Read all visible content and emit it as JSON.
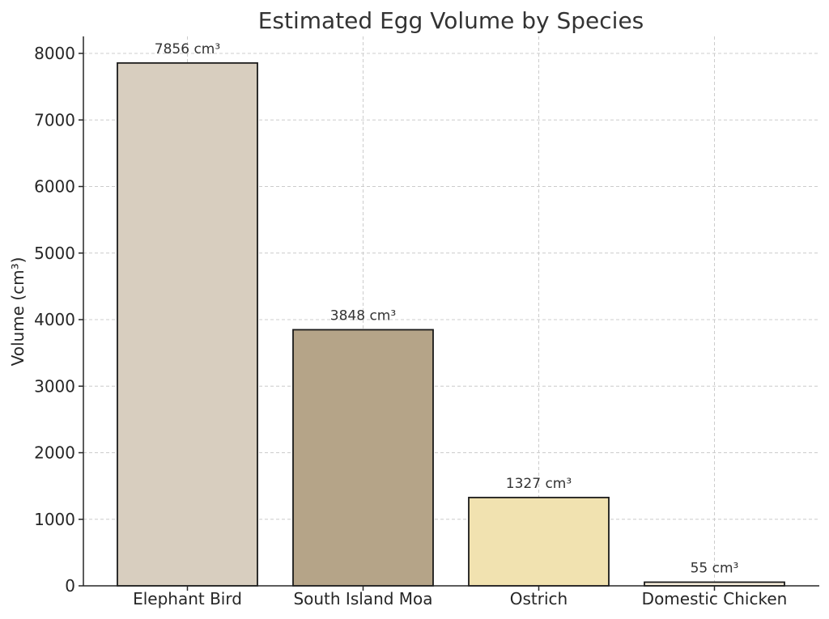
{
  "chart_data": {
    "type": "bar",
    "title": "Estimated Egg Volume by Species",
    "xlabel": "",
    "ylabel": "Volume (cm³)",
    "categories": [
      "Elephant Bird",
      "South Island Moa",
      "Ostrich",
      "Domestic Chicken"
    ],
    "values": [
      7856,
      3848,
      1327,
      55
    ],
    "data_labels": [
      "7856 cm³",
      "3848 cm³",
      "1327 cm³",
      "55 cm³"
    ],
    "colors": [
      "#d8cebf",
      "#b5a488",
      "#f1e2b0",
      "#f8eedc"
    ],
    "ylim": [
      0,
      8250
    ],
    "yticks": [
      0,
      1000,
      2000,
      3000,
      4000,
      5000,
      6000,
      7000,
      8000
    ],
    "grid": true,
    "legend": "none"
  }
}
